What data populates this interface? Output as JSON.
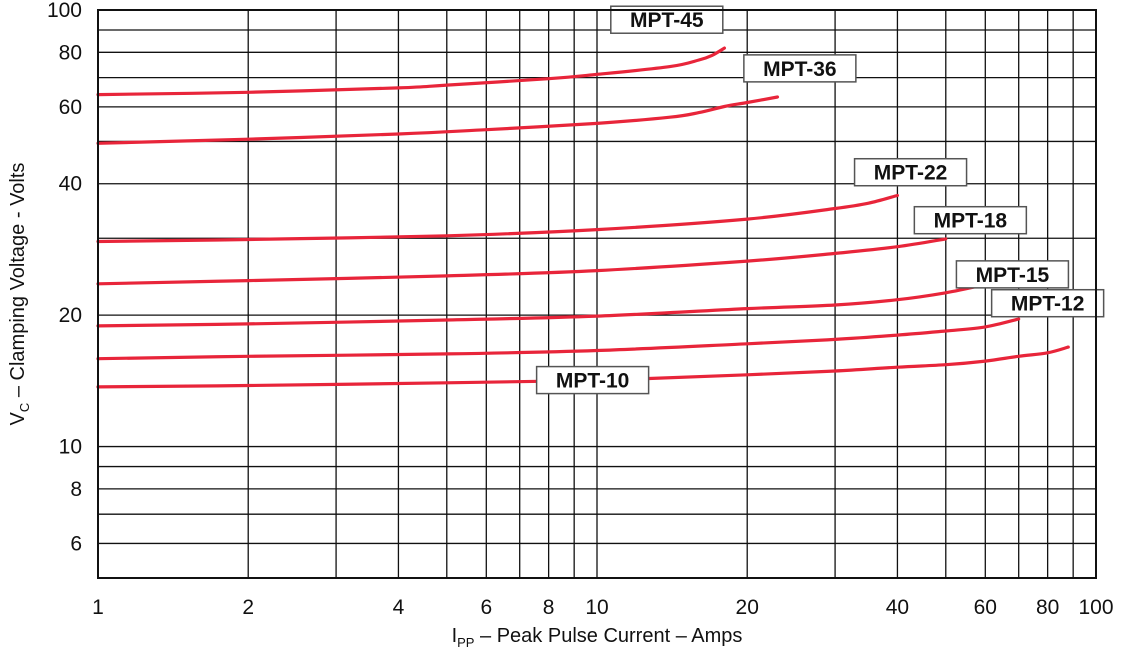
{
  "chart_data": {
    "type": "line",
    "xlabel": {
      "main": "I",
      "sub": "PP",
      "rest": " – Peak Pulse Current – Amps"
    },
    "ylabel": {
      "main": "V",
      "sub": "C",
      "rest": " – Clamping Voltage - Volts"
    },
    "x_scale": "log",
    "y_scale": "log",
    "xlim": [
      1,
      100
    ],
    "ylim": [
      5,
      100
    ],
    "x_tick_labels": [
      {
        "value": 1,
        "label": "1"
      },
      {
        "value": 2,
        "label": "2"
      },
      {
        "value": 4,
        "label": "4"
      },
      {
        "value": 6,
        "label": "6"
      },
      {
        "value": 8,
        "label": "8"
      },
      {
        "value": 10,
        "label": "10"
      },
      {
        "value": 20,
        "label": "20"
      },
      {
        "value": 40,
        "label": "40"
      },
      {
        "value": 60,
        "label": "60"
      },
      {
        "value": 80,
        "label": "80"
      },
      {
        "value": 100,
        "label": "100"
      }
    ],
    "y_tick_labels": [
      {
        "value": 6,
        "label": "6"
      },
      {
        "value": 8,
        "label": "8"
      },
      {
        "value": 10,
        "label": "10"
      },
      {
        "value": 20,
        "label": "20"
      },
      {
        "value": 40,
        "label": "40"
      },
      {
        "value": 60,
        "label": "60"
      },
      {
        "value": 80,
        "label": "80"
      },
      {
        "value": 100,
        "label": "100"
      }
    ],
    "x_gridlines": [
      1,
      2,
      3,
      4,
      5,
      6,
      7,
      8,
      9,
      10,
      20,
      30,
      40,
      50,
      60,
      70,
      80,
      90,
      100
    ],
    "y_gridlines": [
      5,
      6,
      7,
      8,
      9,
      10,
      20,
      30,
      40,
      50,
      60,
      70,
      80,
      90,
      100
    ],
    "grid": true,
    "line_color": "#e8253a",
    "series": [
      {
        "name": "MPT-45",
        "x": [
          1,
          2,
          4,
          5,
          8,
          10,
          14,
          16,
          17,
          18
        ],
        "y": [
          64,
          64.8,
          66.3,
          67.3,
          69.6,
          71.2,
          74.2,
          76.8,
          78.7,
          81.8
        ]
      },
      {
        "name": "MPT-36",
        "x": [
          1,
          2,
          4,
          6,
          10,
          14,
          16,
          18,
          20,
          23
        ],
        "y": [
          49.5,
          50.6,
          52,
          53.2,
          55,
          56.8,
          58.2,
          60.1,
          61.4,
          63.2
        ]
      },
      {
        "name": "MPT-22",
        "x": [
          1,
          2,
          5,
          10,
          20,
          30,
          35,
          40
        ],
        "y": [
          29.5,
          29.8,
          30.4,
          31.4,
          33.2,
          35.1,
          36.1,
          37.6
        ]
      },
      {
        "name": "MPT-18",
        "x": [
          1,
          2,
          5,
          10,
          20,
          30,
          40,
          50
        ],
        "y": [
          23.6,
          24,
          24.6,
          25.3,
          26.6,
          27.7,
          28.7,
          29.9
        ]
      },
      {
        "name": "MPT-15",
        "x": [
          1,
          2,
          5,
          10,
          20,
          30,
          40,
          50,
          60
        ],
        "y": [
          18.9,
          19.1,
          19.5,
          19.9,
          20.7,
          21.1,
          21.7,
          22.5,
          23.5
        ]
      },
      {
        "name": "MPT-12",
        "x": [
          1,
          2,
          5,
          10,
          20,
          30,
          40,
          50,
          60,
          70
        ],
        "y": [
          15.9,
          16.1,
          16.3,
          16.6,
          17.2,
          17.6,
          18,
          18.4,
          18.8,
          19.6
        ]
      },
      {
        "name": "MPT-10",
        "x": [
          1,
          2,
          5,
          10,
          20,
          30,
          40,
          50,
          60,
          70,
          80,
          88
        ],
        "y": [
          13.7,
          13.8,
          14,
          14.2,
          14.6,
          14.9,
          15.2,
          15.4,
          15.7,
          16.1,
          16.4,
          16.9
        ]
      }
    ],
    "series_label_anchor": [
      {
        "name": "MPT-45",
        "x": 13.8,
        "y": 95
      },
      {
        "name": "MPT-36",
        "x": 25.5,
        "y": 73.5
      },
      {
        "name": "MPT-22",
        "x": 42.5,
        "y": 42.5
      },
      {
        "name": "MPT-18",
        "x": 56,
        "y": 33
      },
      {
        "name": "MPT-15",
        "x": 68,
        "y": 24.8
      },
      {
        "name": "MPT-12",
        "x": 80,
        "y": 21.3
      },
      {
        "name": "MPT-10",
        "x": 9.8,
        "y": 14.2
      }
    ]
  }
}
